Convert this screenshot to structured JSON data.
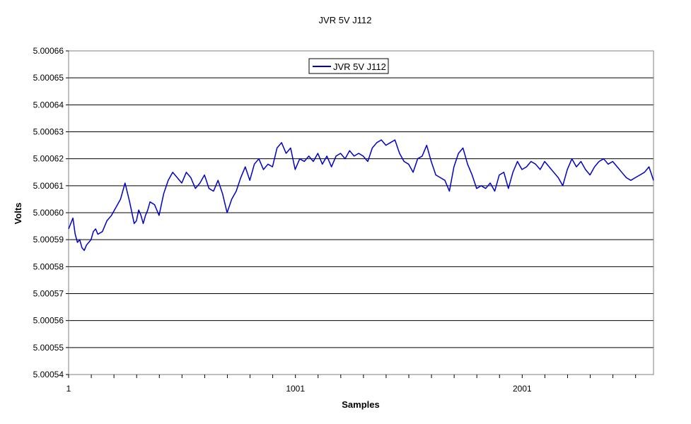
{
  "chart_data": {
    "type": "line",
    "title": "JVR 5V J112",
    "xlabel": "Samples",
    "ylabel": "Volts",
    "ylim": [
      5.00054,
      5.00066
    ],
    "xlim": [
      1,
      2580
    ],
    "yticks": [
      "5.00054",
      "5.00055",
      "5.00056",
      "5.00057",
      "5.00058",
      "5.00059",
      "5.00060",
      "5.00061",
      "5.00062",
      "5.00063",
      "5.00064",
      "5.00065",
      "5.00066"
    ],
    "xticks": [
      "1",
      "1001",
      "2001"
    ],
    "grid": "horizontal",
    "legend": "top-center",
    "colors": {
      "series": "#0000cc",
      "grid": "#000000"
    },
    "series": [
      {
        "name": "JVR 5V J112",
        "x": [
          1,
          20,
          30,
          40,
          50,
          60,
          70,
          80,
          100,
          110,
          120,
          130,
          150,
          170,
          190,
          210,
          230,
          250,
          270,
          290,
          300,
          310,
          320,
          330,
          340,
          350,
          360,
          380,
          400,
          420,
          440,
          460,
          480,
          500,
          520,
          540,
          560,
          580,
          600,
          620,
          640,
          660,
          680,
          700,
          720,
          740,
          760,
          780,
          800,
          820,
          840,
          860,
          880,
          900,
          920,
          940,
          960,
          980,
          1000,
          1020,
          1040,
          1060,
          1080,
          1100,
          1120,
          1140,
          1160,
          1180,
          1200,
          1220,
          1240,
          1260,
          1280,
          1300,
          1320,
          1340,
          1360,
          1380,
          1400,
          1420,
          1440,
          1460,
          1480,
          1500,
          1520,
          1540,
          1560,
          1580,
          1600,
          1620,
          1640,
          1660,
          1680,
          1700,
          1720,
          1740,
          1760,
          1780,
          1800,
          1820,
          1840,
          1860,
          1880,
          1900,
          1920,
          1940,
          1960,
          1980,
          2000,
          2020,
          2040,
          2060,
          2080,
          2100,
          2120,
          2140,
          2160,
          2180,
          2200,
          2220,
          2240,
          2260,
          2280,
          2300,
          2320,
          2340,
          2360,
          2380,
          2400,
          2420,
          2440,
          2460,
          2480,
          2500,
          2520,
          2540,
          2560,
          2580
        ],
        "values": [
          5.000594,
          5.000598,
          5.000592,
          5.000589,
          5.00059,
          5.000587,
          5.000586,
          5.000588,
          5.00059,
          5.000593,
          5.000594,
          5.000592,
          5.000593,
          5.000597,
          5.000599,
          5.000602,
          5.000605,
          5.000611,
          5.000604,
          5.000596,
          5.000597,
          5.000601,
          5.000599,
          5.000596,
          5.000599,
          5.000601,
          5.000604,
          5.000603,
          5.000599,
          5.000607,
          5.000612,
          5.000615,
          5.000613,
          5.000611,
          5.000615,
          5.000613,
          5.000609,
          5.000611,
          5.000614,
          5.000609,
          5.000608,
          5.000612,
          5.000607,
          5.0006,
          5.000605,
          5.000608,
          5.000613,
          5.000617,
          5.000612,
          5.000618,
          5.00062,
          5.000616,
          5.000618,
          5.000617,
          5.000624,
          5.000626,
          5.000622,
          5.000624,
          5.000616,
          5.00062,
          5.000619,
          5.000621,
          5.000619,
          5.000622,
          5.000618,
          5.000621,
          5.000617,
          5.000621,
          5.000622,
          5.00062,
          5.000623,
          5.000621,
          5.000622,
          5.000621,
          5.000619,
          5.000624,
          5.000626,
          5.000627,
          5.000625,
          5.000626,
          5.000627,
          5.000622,
          5.000619,
          5.000618,
          5.000615,
          5.00062,
          5.000621,
          5.000625,
          5.000619,
          5.000614,
          5.000613,
          5.000612,
          5.000608,
          5.000617,
          5.000622,
          5.000624,
          5.000618,
          5.000614,
          5.000609,
          5.00061,
          5.000609,
          5.000611,
          5.000608,
          5.000614,
          5.000615,
          5.000609,
          5.000615,
          5.000619,
          5.000616,
          5.000617,
          5.000619,
          5.000618,
          5.000616,
          5.000619,
          5.000617,
          5.000615,
          5.000613,
          5.00061,
          5.000616,
          5.00062,
          5.000617,
          5.000619,
          5.000616,
          5.000614,
          5.000617,
          5.000619,
          5.00062,
          5.000618,
          5.000619,
          5.000617,
          5.000615,
          5.000613,
          5.000612,
          5.000613,
          5.000614,
          5.000615,
          5.000617,
          5.000612
        ]
      }
    ]
  }
}
